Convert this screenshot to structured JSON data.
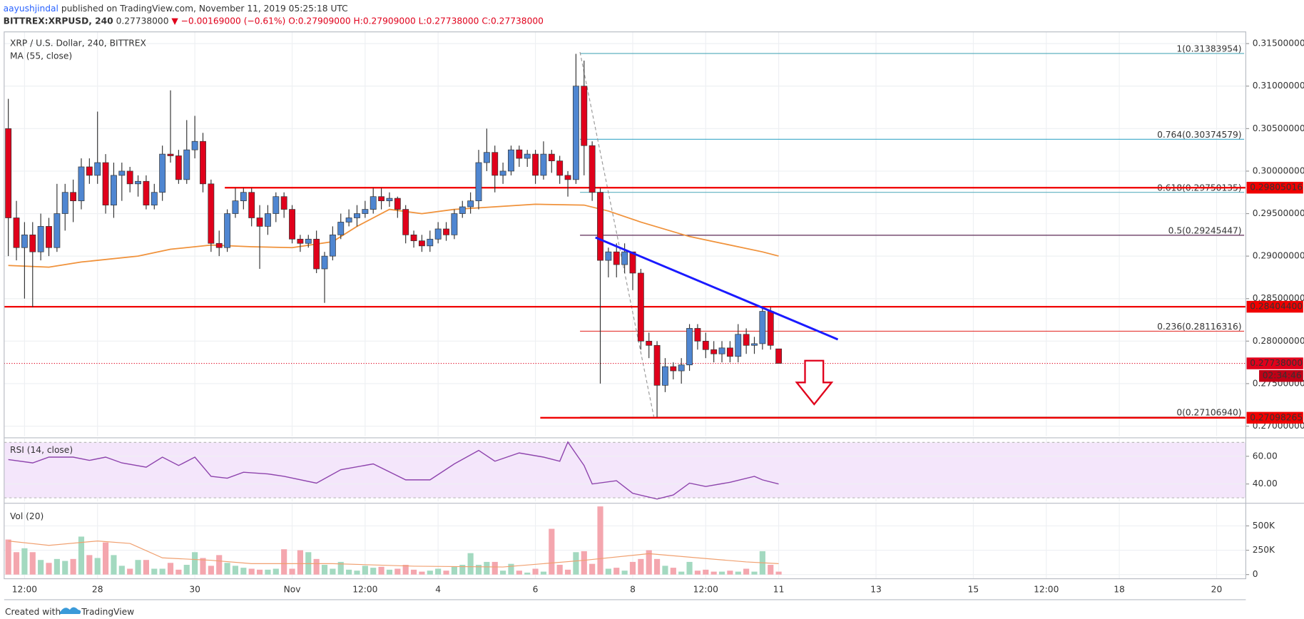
{
  "header": {
    "author": "aayushjindal",
    "published": "published on TradingView.com, November 11, 2019 05:25:18 UTC",
    "symbol": "BITTREX:XRPUSD, 240",
    "last": "0.27738000",
    "change": "▼ −0.00169000 (−0.61%)",
    "ohlc": "O:0.27909000 H:0.27909000 L:0.27738000 C:0.27738000"
  },
  "footer": {
    "text": "Created with",
    "brand": "TradingView"
  },
  "chart_data": [
    {
      "type": "candlestick",
      "title": "XRP / U.S. Dollar, 240, BITTREX",
      "xlim": [
        -0.513,
        152.6
      ],
      "ylim": [
        0.26882,
        0.31638
      ],
      "yticks": [
        {
          "value": 0.27,
          "label": "0.27000000"
        },
        {
          "value": 0.275,
          "label": "0.27500000"
        },
        {
          "value": 0.28,
          "label": "0.28000000"
        },
        {
          "value": 0.285,
          "label": "0.28500000"
        },
        {
          "value": 0.29,
          "label": "0.29000000"
        },
        {
          "value": 0.295,
          "label": "0.29500000"
        },
        {
          "value": 0.3,
          "label": "0.30000000"
        },
        {
          "value": 0.305,
          "label": "0.30500000"
        },
        {
          "value": 0.31,
          "label": "0.31000000"
        },
        {
          "value": 0.315,
          "label": "0.31500000"
        }
      ],
      "up_color": "#4f86d1",
      "down_color": "#e0001b",
      "open": [
        0.305,
        0.2945,
        0.291,
        0.2925,
        0.2905,
        0.2935,
        0.291,
        0.295,
        0.2975,
        0.2965,
        0.3005,
        0.2995,
        0.301,
        0.296,
        0.2995,
        0.3,
        0.2985,
        0.2988,
        0.296,
        0.2975,
        0.302,
        0.3018,
        0.299,
        0.3025,
        0.3035,
        0.2985,
        0.2915,
        0.291,
        0.295,
        0.2965,
        0.2975,
        0.2945,
        0.2935,
        0.295,
        0.297,
        0.2955,
        0.292,
        0.2915,
        0.292,
        0.2885,
        0.29,
        0.2925,
        0.294,
        0.2945,
        0.295,
        0.2955,
        0.297,
        0.2965,
        0.2968,
        0.2955,
        0.2925,
        0.2918,
        0.2912,
        0.292,
        0.2932,
        0.2925,
        0.295,
        0.2958,
        0.2965,
        0.301,
        0.3022,
        0.2995,
        0.3,
        0.3025,
        0.3015,
        0.302,
        0.2995,
        0.302,
        0.3012,
        0.2995,
        0.299,
        0.31,
        0.303,
        0.2975,
        0.2895,
        0.2905,
        0.289,
        0.2905,
        0.288,
        0.28,
        0.2795,
        0.2748,
        0.277,
        0.2765,
        0.2772,
        0.2815,
        0.28,
        0.279,
        0.2785,
        0.2792,
        0.2782,
        0.2808,
        0.2795,
        0.2797,
        0.2835,
        0.27909
      ],
      "high": [
        0.3085,
        0.2965,
        0.294,
        0.294,
        0.295,
        0.2945,
        0.2985,
        0.2985,
        0.299,
        0.3015,
        0.3015,
        0.307,
        0.302,
        0.301,
        0.301,
        0.3005,
        0.2995,
        0.2995,
        0.2985,
        0.303,
        0.3095,
        0.3025,
        0.306,
        0.3065,
        0.3045,
        0.299,
        0.293,
        0.2955,
        0.298,
        0.298,
        0.298,
        0.296,
        0.296,
        0.2975,
        0.2975,
        0.296,
        0.2925,
        0.2925,
        0.293,
        0.2905,
        0.2935,
        0.295,
        0.2955,
        0.296,
        0.2965,
        0.298,
        0.298,
        0.2975,
        0.297,
        0.296,
        0.293,
        0.2925,
        0.293,
        0.294,
        0.294,
        0.2955,
        0.2965,
        0.2975,
        0.3025,
        0.305,
        0.303,
        0.301,
        0.303,
        0.303,
        0.3025,
        0.3025,
        0.3035,
        0.3025,
        0.3018,
        0.3,
        0.3138,
        0.313,
        0.3035,
        0.298,
        0.291,
        0.2915,
        0.2915,
        0.2905,
        0.2885,
        0.281,
        0.28,
        0.278,
        0.2775,
        0.278,
        0.282,
        0.282,
        0.281,
        0.28,
        0.28,
        0.28,
        0.282,
        0.2815,
        0.2805,
        0.284,
        0.284,
        0.27909
      ],
      "low": [
        0.29,
        0.2895,
        0.285,
        0.284,
        0.2895,
        0.29,
        0.2905,
        0.293,
        0.294,
        0.2955,
        0.2985,
        0.2985,
        0.295,
        0.2945,
        0.2965,
        0.2975,
        0.297,
        0.2955,
        0.2955,
        0.2965,
        0.301,
        0.2985,
        0.2985,
        0.3015,
        0.2975,
        0.2905,
        0.29,
        0.2905,
        0.2945,
        0.2955,
        0.2935,
        0.2885,
        0.2925,
        0.294,
        0.2945,
        0.2915,
        0.2905,
        0.291,
        0.288,
        0.2845,
        0.2895,
        0.292,
        0.2935,
        0.2935,
        0.2945,
        0.295,
        0.2955,
        0.2958,
        0.2945,
        0.2915,
        0.291,
        0.2905,
        0.2905,
        0.2915,
        0.2918,
        0.292,
        0.2945,
        0.295,
        0.2955,
        0.3,
        0.2975,
        0.2985,
        0.2995,
        0.3005,
        0.3005,
        0.2985,
        0.299,
        0.2998,
        0.2985,
        0.297,
        0.2985,
        0.2995,
        0.2965,
        0.275,
        0.2875,
        0.2875,
        0.288,
        0.286,
        0.279,
        0.278,
        0.27107,
        0.274,
        0.2755,
        0.275,
        0.2765,
        0.279,
        0.278,
        0.2775,
        0.2775,
        0.2775,
        0.2775,
        0.2785,
        0.2785,
        0.279,
        0.279,
        0.27738
      ],
      "close": [
        0.2945,
        0.291,
        0.2925,
        0.2905,
        0.2935,
        0.291,
        0.295,
        0.2975,
        0.2965,
        0.3005,
        0.2995,
        0.301,
        0.296,
        0.2995,
        0.3,
        0.2985,
        0.2988,
        0.296,
        0.2975,
        0.302,
        0.3018,
        0.299,
        0.3025,
        0.3035,
        0.2985,
        0.2915,
        0.291,
        0.295,
        0.2965,
        0.2975,
        0.2945,
        0.2935,
        0.295,
        0.297,
        0.2955,
        0.292,
        0.2915,
        0.292,
        0.2885,
        0.29,
        0.2925,
        0.294,
        0.2945,
        0.295,
        0.2955,
        0.297,
        0.2965,
        0.2968,
        0.2955,
        0.2925,
        0.2918,
        0.2912,
        0.292,
        0.2932,
        0.2925,
        0.295,
        0.2958,
        0.2965,
        0.301,
        0.3022,
        0.2995,
        0.3,
        0.3025,
        0.3015,
        0.302,
        0.2995,
        0.302,
        0.3012,
        0.2995,
        0.299,
        0.31,
        0.303,
        0.2975,
        0.2895,
        0.2905,
        0.289,
        0.2905,
        0.288,
        0.28,
        0.2795,
        0.2748,
        0.277,
        0.2765,
        0.2772,
        0.2815,
        0.28,
        0.279,
        0.2785,
        0.2792,
        0.2782,
        0.2808,
        0.2795,
        0.2797,
        0.2835,
        0.2795,
        0.27738
      ],
      "overlays": [
        {
          "name": "MA (55, close)",
          "color": "#f0923b",
          "x": [
            0,
            5,
            9,
            16,
            20,
            25,
            30,
            35,
            40,
            43,
            47,
            51,
            55,
            60,
            65,
            71,
            74,
            78,
            84,
            88,
            93,
            95
          ],
          "values": [
            0.2889,
            0.2887,
            0.2893,
            0.29,
            0.2908,
            0.2913,
            0.2911,
            0.291,
            0.2917,
            0.2935,
            0.2955,
            0.295,
            0.2955,
            0.2958,
            0.2961,
            0.296,
            0.2953,
            0.294,
            0.2923,
            0.2915,
            0.2905,
            0.29
          ]
        }
      ],
      "level_color": "#f00000",
      "levels": [
        {
          "value": 0.29805016,
          "label": "0.29805016",
          "start": 26.7
        },
        {
          "value": 0.284044,
          "label": "0.28404400",
          "start": -0.5
        },
        {
          "value": 0.27098265,
          "label": "0.27098265",
          "start": 65.6
        }
      ],
      "last": {
        "value": 0.27738,
        "label": "0.27738000"
      },
      "countdown": "02:34:46",
      "fib_start": 70.5,
      "fib": [
        {
          "label": "1(0.31383954)",
          "value": 0.31383954,
          "color": "#5fb0c0"
        },
        {
          "label": "0.764(0.30374579)",
          "value": 0.30374579,
          "color": "#3ba8c8"
        },
        {
          "label": "0.618(0.29750135)",
          "value": 0.29750135,
          "color": "#5fb0c0"
        },
        {
          "label": "0.5(0.29245447)",
          "value": 0.29245447,
          "color": "#5b2a55"
        },
        {
          "label": "0.236(0.28116316)",
          "value": 0.28116316,
          "color": "#e53935"
        },
        {
          "label": "0(0.27106940)",
          "value": 0.2710694,
          "color": "#999999"
        }
      ],
      "trendline": {
        "x": [
          72.4,
          102.3
        ],
        "values": [
          0.2922,
          0.2802
        ],
        "color": "#1a1aff"
      },
      "fib_trend": {
        "x": [
          70.5,
          79.6
        ],
        "values": [
          0.314,
          0.2711
        ],
        "color": "#999999"
      }
    },
    {
      "type": "line",
      "title": "RSI (14, close)",
      "xlim": [
        -0.513,
        152.6
      ],
      "ylim": [
        27.3,
        72.7
      ],
      "yticks": [
        {
          "value": 40,
          "label": "40.00"
        },
        {
          "value": 60,
          "label": "60.00"
        }
      ],
      "band": [
        30,
        70
      ],
      "band_color": "#f4e6fb",
      "series": [
        {
          "color": "#8e44ad",
          "x": [
            0,
            3,
            5,
            8,
            10,
            12,
            14,
            17,
            19,
            21,
            23,
            25,
            27,
            29,
            32,
            34,
            38,
            41,
            45,
            49,
            52,
            55,
            58,
            60,
            63,
            66,
            68,
            69,
            71,
            72,
            75,
            77,
            80,
            82,
            84,
            86,
            89,
            92,
            93,
            95
          ],
          "values": [
            57.6,
            55.2,
            59.4,
            59.4,
            57,
            59.4,
            55.2,
            52.1,
            59.4,
            53.3,
            59.4,
            45.5,
            44.2,
            48.5,
            47.3,
            45.5,
            40.6,
            50.3,
            54.5,
            43,
            43,
            54.5,
            64.2,
            56.4,
            62.4,
            59.4,
            56.4,
            70.3,
            53.3,
            40,
            42.4,
            33.3,
            29.1,
            32.1,
            40.6,
            38.2,
            41.2,
            45.5,
            43,
            40
          ]
        }
      ]
    },
    {
      "type": "bar",
      "title": "Vol (20)",
      "xlim": [
        -0.513,
        152.6
      ],
      "ylim": [
        -43000,
        724000
      ],
      "yticks": [
        {
          "value": 0,
          "label": "0"
        },
        {
          "value": 250000,
          "label": "250K"
        },
        {
          "value": 500000,
          "label": "500K"
        }
      ],
      "up_color": "#a3d9c0",
      "down_color": "#f4a6ae",
      "values": [
        360000,
        230000,
        270000,
        230000,
        150000,
        120000,
        160000,
        140000,
        160000,
        390000,
        200000,
        170000,
        330000,
        200000,
        90000,
        60000,
        150000,
        150000,
        60000,
        60000,
        120000,
        50000,
        100000,
        230000,
        170000,
        90000,
        200000,
        120000,
        90000,
        70000,
        60000,
        50000,
        50000,
        60000,
        260000,
        60000,
        250000,
        230000,
        160000,
        100000,
        60000,
        130000,
        50000,
        40000,
        90000,
        70000,
        80000,
        50000,
        60000,
        100000,
        50000,
        30000,
        40000,
        60000,
        40000,
        80000,
        100000,
        220000,
        100000,
        130000,
        130000,
        40000,
        110000,
        40000,
        20000,
        60000,
        30000,
        470000,
        100000,
        50000,
        230000,
        240000,
        110000,
        700000,
        60000,
        70000,
        40000,
        130000,
        160000,
        250000,
        160000,
        90000,
        70000,
        30000,
        130000,
        40000,
        50000,
        30000,
        30000,
        40000,
        30000,
        60000,
        30000,
        240000,
        100000,
        30000
      ],
      "ma": {
        "color": "#f0a070",
        "x": [
          0,
          5,
          11,
          15,
          19,
          25,
          30,
          40,
          50,
          61,
          71,
          79,
          85,
          91,
          95
        ],
        "values": [
          345000,
          300000,
          345000,
          320000,
          172000,
          147000,
          112000,
          112000,
          86000,
          78000,
          147000,
          215000,
          172000,
          130000,
          112000
        ]
      },
      "xticks": [
        {
          "value": 2,
          "label": "12:00"
        },
        {
          "value": 11,
          "label": "28"
        },
        {
          "value": 23,
          "label": "30"
        },
        {
          "value": 35,
          "label": "Nov"
        },
        {
          "value": 44,
          "label": "12:00"
        },
        {
          "value": 53,
          "label": "4"
        },
        {
          "value": 65,
          "label": "6"
        },
        {
          "value": 77,
          "label": "8"
        },
        {
          "value": 86,
          "label": "12:00"
        },
        {
          "value": 95,
          "label": "11"
        },
        {
          "value": 107,
          "label": "13"
        },
        {
          "value": 119,
          "label": "15"
        },
        {
          "value": 128,
          "label": "12:00"
        },
        {
          "value": 137,
          "label": "18"
        },
        {
          "value": 149,
          "label": "20"
        }
      ]
    }
  ]
}
